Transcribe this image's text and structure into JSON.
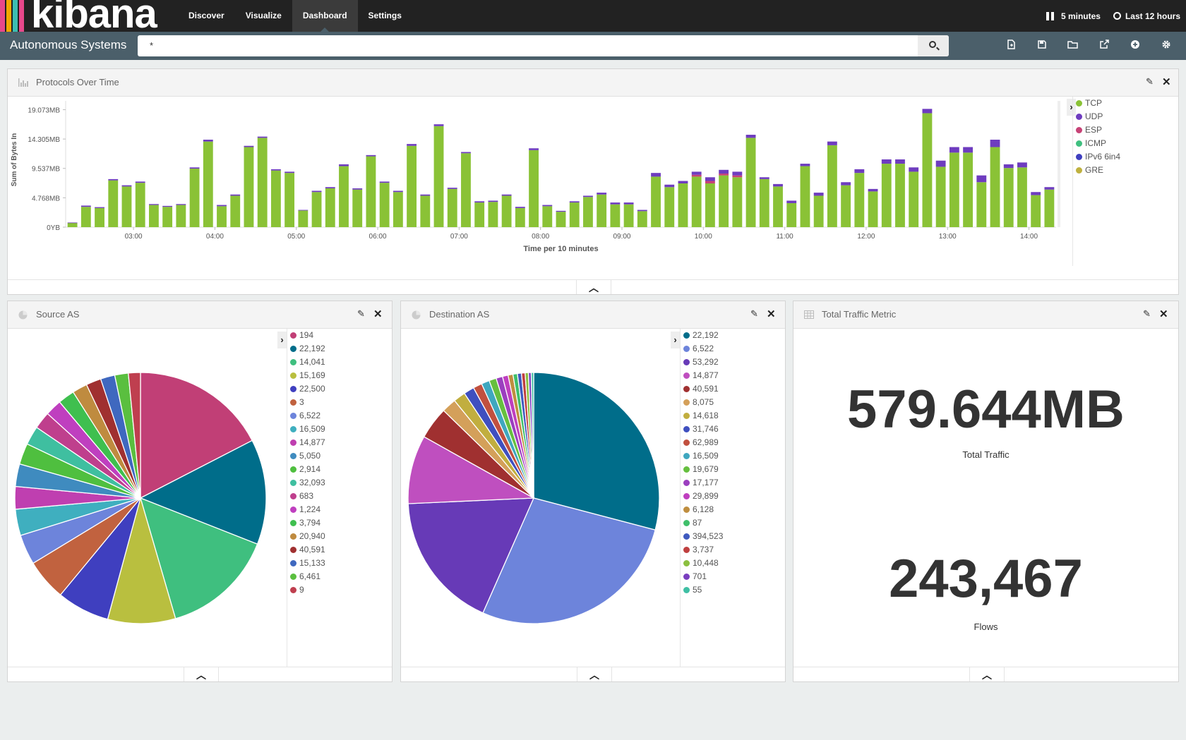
{
  "app": {
    "logo": "kibana",
    "logo_colors": [
      "#e8488b",
      "#3cbeb1",
      "#9ac43c",
      "#f5a700",
      "#ffffff"
    ]
  },
  "nav": [
    {
      "label": "Discover",
      "active": false
    },
    {
      "label": "Visualize",
      "active": false
    },
    {
      "label": "Dashboard",
      "active": true
    },
    {
      "label": "Settings",
      "active": false
    }
  ],
  "topright": {
    "refresh_interval": "5 minutes",
    "time_range": "Last 12 hours"
  },
  "dashboard": {
    "title": "Autonomous Systems",
    "query": "*"
  },
  "panels": {
    "protocols": {
      "title": "Protocols Over Time"
    },
    "source": {
      "title": "Source AS"
    },
    "destination": {
      "title": "Destination AS"
    },
    "metric": {
      "title": "Total Traffic Metric"
    }
  },
  "metric": {
    "total_traffic": {
      "value": "579.644MB",
      "label": "Total Traffic"
    },
    "flows": {
      "value": "243,467",
      "label": "Flows"
    }
  },
  "chart_data": [
    {
      "type": "bar",
      "stacked": true,
      "title": "Protocols Over Time",
      "xlabel": "Time per 10 minutes",
      "ylabel": "Sum of Bytes In",
      "ylim_mb": [
        0,
        20.5
      ],
      "y_ticks": [
        {
          "value": 0,
          "label": "0YB"
        },
        {
          "value": 4.768,
          "label": "4.768MB"
        },
        {
          "value": 9.537,
          "label": "9.537MB"
        },
        {
          "value": 14.305,
          "label": "14.305MB"
        },
        {
          "value": 19.073,
          "label": "19.073MB"
        }
      ],
      "x_ticks": [
        {
          "index": 4,
          "label": "03:00"
        },
        {
          "index": 10,
          "label": "04:00"
        },
        {
          "index": 16,
          "label": "05:00"
        },
        {
          "index": 22,
          "label": "06:00"
        },
        {
          "index": 28,
          "label": "07:00"
        },
        {
          "index": 34,
          "label": "08:00"
        },
        {
          "index": 40,
          "label": "09:00"
        },
        {
          "index": 46,
          "label": "10:00"
        },
        {
          "index": 52,
          "label": "11:00"
        },
        {
          "index": 58,
          "label": "12:00"
        },
        {
          "index": 64,
          "label": "13:00"
        },
        {
          "index": 70,
          "label": "14:00"
        }
      ],
      "series_names": [
        "TCP",
        "UDP",
        "ESP",
        "ICMP",
        "IPv6 6in4",
        "GRE"
      ],
      "series_colors": [
        "#8ac236",
        "#6e3cbf",
        "#c74276",
        "#3fbf7f",
        "#3f3fbf",
        "#bfb13f"
      ],
      "tcp": [
        0.7,
        3.3,
        3.1,
        7.6,
        6.6,
        7.2,
        3.6,
        3.3,
        3.6,
        9.5,
        13.9,
        3.4,
        5.1,
        13.0,
        14.5,
        9.2,
        8.8,
        2.7,
        5.7,
        6.3,
        9.9,
        6.1,
        11.5,
        7.2,
        5.7,
        13.2,
        5.1,
        16.4,
        6.2,
        12.0,
        4.0,
        4.1,
        5.1,
        3.1,
        12.5,
        3.4,
        2.5,
        4.0,
        4.9,
        5.3,
        3.7,
        3.7,
        2.6,
        8.2,
        6.5,
        7.1,
        8.2,
        7.1,
        8.4,
        8.1,
        14.5,
        7.8,
        6.6,
        3.9,
        9.9,
        5.1,
        13.3,
        6.8,
        8.8,
        5.8,
        10.3,
        10.3,
        9.0,
        18.5,
        9.8,
        12.1,
        12.1,
        7.3,
        13.0,
        9.6,
        9.7,
        5.2,
        6.1
      ],
      "udp": [
        0.05,
        0.2,
        0.15,
        0.2,
        0.2,
        0.2,
        0.15,
        0.15,
        0.15,
        0.2,
        0.3,
        0.2,
        0.2,
        0.2,
        0.2,
        0.2,
        0.2,
        0.1,
        0.2,
        0.2,
        0.3,
        0.2,
        0.2,
        0.2,
        0.2,
        0.3,
        0.2,
        0.3,
        0.2,
        0.2,
        0.2,
        0.2,
        0.2,
        0.2,
        0.3,
        0.2,
        0.15,
        0.2,
        0.2,
        0.3,
        0.3,
        0.3,
        0.2,
        0.6,
        0.4,
        0.4,
        0.5,
        0.6,
        0.6,
        0.6,
        0.5,
        0.3,
        0.4,
        0.4,
        0.4,
        0.5,
        0.6,
        0.5,
        0.6,
        0.4,
        0.7,
        0.7,
        0.7,
        0.7,
        1.0,
        0.9,
        0.9,
        1.1,
        1.2,
        0.6,
        0.8,
        0.5,
        0.4
      ],
      "esp": [
        0,
        0,
        0,
        0,
        0,
        0,
        0,
        0,
        0,
        0,
        0,
        0,
        0,
        0,
        0,
        0,
        0,
        0,
        0,
        0,
        0,
        0,
        0,
        0,
        0,
        0,
        0,
        0,
        0,
        0,
        0,
        0,
        0,
        0,
        0,
        0,
        0,
        0,
        0,
        0,
        0,
        0,
        0,
        0,
        0,
        0,
        0.3,
        0.4,
        0.3,
        0.3,
        0,
        0,
        0,
        0,
        0,
        0,
        0,
        0,
        0,
        0,
        0,
        0,
        0,
        0,
        0,
        0,
        0,
        0,
        0,
        0,
        0,
        0,
        0
      ]
    },
    {
      "type": "pie",
      "title": "Source AS",
      "labels": [
        "194",
        "22,192",
        "14,041",
        "15,169",
        "22,500",
        "3",
        "6,522",
        "16,509",
        "14,877",
        "5,050",
        "2,914",
        "32,093",
        "683",
        "1,224",
        "3,794",
        "20,940",
        "40,591",
        "15,133",
        "6,461",
        "9"
      ],
      "values": [
        18,
        14,
        15,
        9,
        7,
        5.5,
        4,
        3.5,
        3,
        3,
        2.8,
        2.5,
        2.3,
        2.2,
        2.2,
        2,
        2,
        1.9,
        1.8,
        1.6
      ],
      "colors": [
        "#c13f76",
        "#006d8a",
        "#3fbf7f",
        "#b9bf3f",
        "#3f3fbf",
        "#c1623f",
        "#6d84db",
        "#3fafbf",
        "#bf3fb0",
        "#3f8bbf",
        "#4fbf3f",
        "#3fbfa0",
        "#bf3f8d",
        "#bf3fbf",
        "#3fbf4f",
        "#bf8b3f",
        "#a03030",
        "#3f68bf",
        "#5abf3f",
        "#bf3f4f"
      ]
    },
    {
      "type": "pie",
      "title": "Destination AS",
      "labels": [
        "22,192",
        "6,522",
        "53,292",
        "14,877",
        "40,591",
        "8,075",
        "14,618",
        "31,746",
        "62,989",
        "16,509",
        "19,679",
        "17,177",
        "29,899",
        "6,128",
        "87",
        "394,523",
        "3,737",
        "10,448",
        "701",
        "55"
      ],
      "values": [
        28,
        26.5,
        17,
        8.5,
        4,
        1.8,
        1.5,
        1.3,
        1.1,
        1.0,
        0.9,
        0.8,
        0.7,
        0.6,
        0.55,
        0.5,
        0.45,
        0.4,
        0.35,
        0.3
      ],
      "colors": [
        "#006d8a",
        "#6d84db",
        "#673ab7",
        "#bf4fbf",
        "#a03030",
        "#d4a05a",
        "#c1ae3f",
        "#3f4fbf",
        "#c1503f",
        "#3fa7bf",
        "#66bf3f",
        "#9b3fbf",
        "#bf3fbf",
        "#bf8e3f",
        "#3fbf6a",
        "#3f5abf",
        "#bf3f3f",
        "#8bbf3f",
        "#7a3fbf",
        "#3fbfa4"
      ]
    }
  ]
}
